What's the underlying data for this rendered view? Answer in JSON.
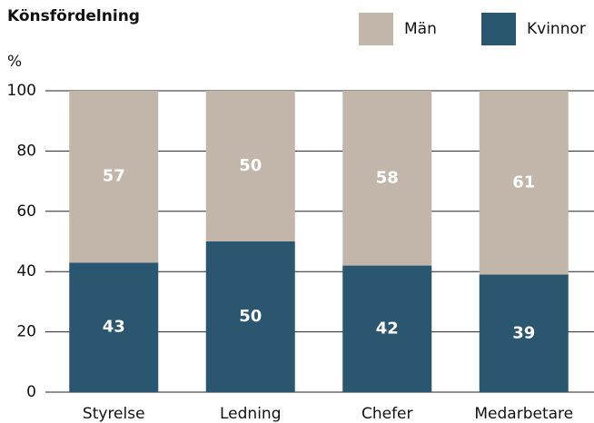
{
  "chart_data": {
    "type": "stacked_bar",
    "title": "Könsfördelning",
    "y_label": "%",
    "categories": [
      "Styrelse",
      "Ledning",
      "Chefer",
      "Medarbetare"
    ],
    "series": [
      {
        "name": "Kvinnor",
        "color": "#2b5670",
        "values": [
          43,
          50,
          42,
          39
        ]
      },
      {
        "name": "Män",
        "color": "#c2b5aa",
        "values": [
          57,
          50,
          58,
          61
        ]
      }
    ],
    "ylim": [
      0,
      100
    ],
    "yticks": [
      0,
      20,
      40,
      60,
      80,
      100
    ],
    "grid": true
  }
}
